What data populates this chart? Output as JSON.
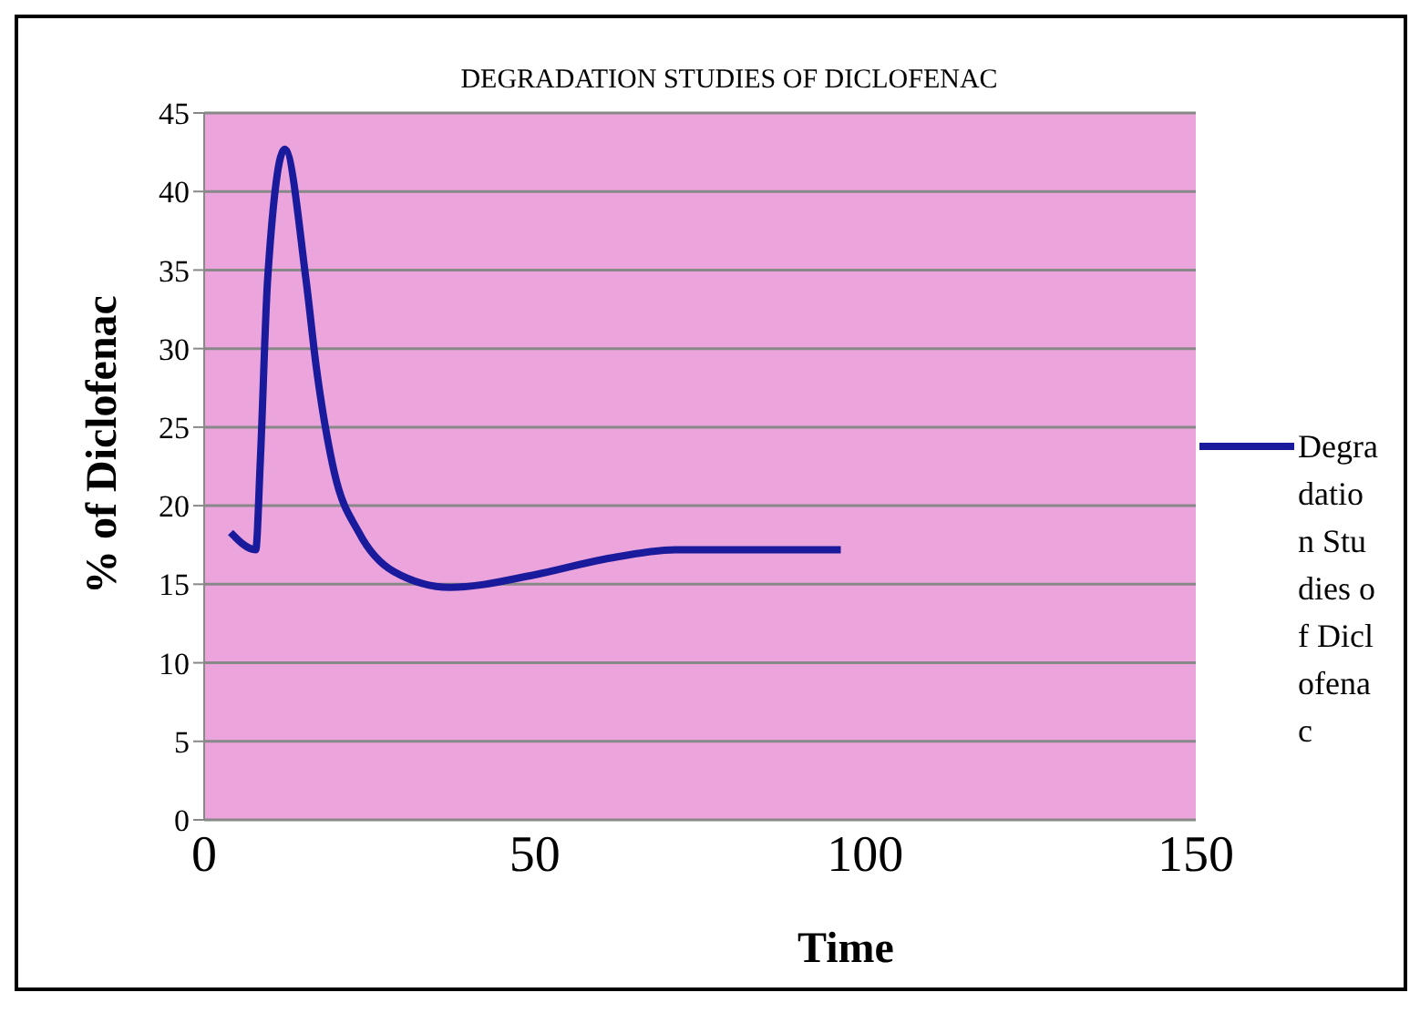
{
  "chart_data": {
    "type": "line",
    "title": "DEGRADATION STUDIES OF DICLOFENAC",
    "xlabel": "Time",
    "ylabel": "%    of Diclofenac",
    "series": [
      {
        "name": "Degradation Studies of Diclofenac",
        "color": "#1a1a9c",
        "x": [
          4,
          7.8,
          8.5,
          9.6,
          12.2,
          15.4,
          17,
          19.7,
          23.4,
          28.7,
          37.2,
          50,
          60.6,
          71.3,
          96.3
        ],
        "values": [
          18.3,
          17.2,
          22.9,
          34.4,
          42.7,
          34.4,
          28.7,
          22.1,
          18.3,
          15.8,
          14.8,
          15.6,
          16.6,
          17.2,
          17.2
        ]
      }
    ],
    "xlim": [
      0,
      150
    ],
    "xticks": [
      0,
      50,
      100,
      150
    ],
    "ylim": [
      0,
      45
    ],
    "yticks": [
      0,
      5,
      10,
      15,
      20,
      25,
      30,
      35,
      40,
      45
    ],
    "grid": "y",
    "legend": "right",
    "marker": "none",
    "line_style": "solid"
  }
}
